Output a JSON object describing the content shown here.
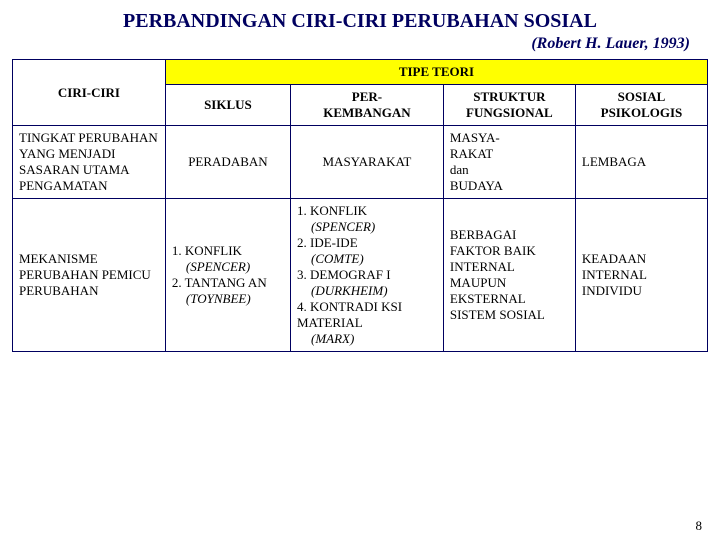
{
  "title": "PERBANDINGAN CIRI-CIRI PERUBAHAN SOSIAL",
  "subtitle": "(Robert H. Lauer, 1993)",
  "page_number": "8",
  "colors": {
    "header_dark": "#000060",
    "highlight": "#ffff00",
    "background": "#ffffff",
    "border": "#000060"
  },
  "table": {
    "corner_label": "CIRI-CIRI",
    "group_header": "TIPE TEORI",
    "column_headers": [
      "SIKLUS",
      "PER-\nKEMBANGAN",
      "STRUKTUR FUNGSIONAL",
      "SOSIAL PSIKOLOGIS"
    ],
    "col_widths_pct": [
      22,
      18,
      22,
      19,
      19
    ],
    "rows": [
      {
        "label": "TINGKAT PERUBAHAN YANG MENJADI SASARAN UTAMA PENGAMATAN",
        "cells": {
          "siklus": "PERADABAN",
          "perkembangan": "MASYARAKAT",
          "struktur": "MASYA-\nRAKAT\ndan\nBUDAYA",
          "sosial": "LEMBAGA"
        }
      },
      {
        "label": "MEKANISME PERUBAHAN PEMICU PERUBAHAN",
        "cells": {
          "siklus_items": [
            {
              "num": "1.",
              "text": "KONFLIK",
              "sub": "(SPENCER)"
            },
            {
              "num": "2.",
              "text": "TANTANG AN",
              "sub": "(TOYNBEE)"
            }
          ],
          "perkembangan_items": [
            {
              "num": "1.",
              "text": "KONFLIK",
              "sub": "(SPENCER)"
            },
            {
              "num": "2.",
              "text": "IDE-IDE",
              "sub": "(COMTE)"
            },
            {
              "num": "3.",
              "text": "DEMOGRAF I",
              "sub": "(DURKHEIM)"
            },
            {
              "num": "4.",
              "text": "KONTRADI KSI MATERIAL",
              "sub": "(MARX)"
            }
          ],
          "struktur": "BERBAGAI FAKTOR BAIK INTERNAL MAUPUN EKSTERNAL SISTEM SOSIAL",
          "sosial": "KEADAAN INTERNAL INDIVIDU"
        }
      }
    ]
  }
}
